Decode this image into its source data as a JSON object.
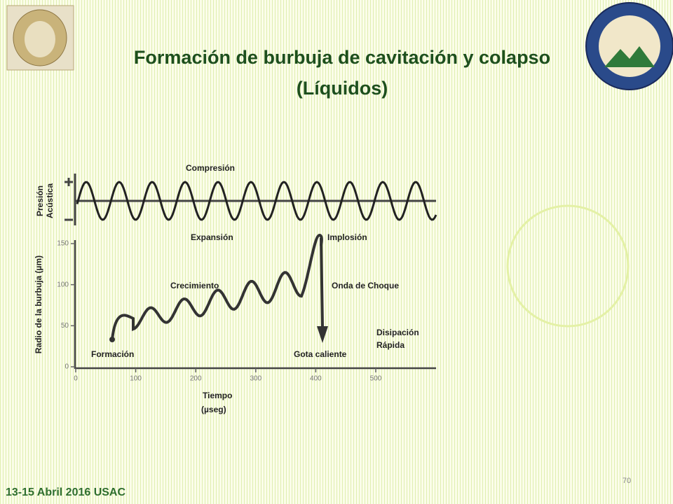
{
  "header": {
    "title": [
      "Formación de burbuja de cavitación y colapso",
      "(Líquidos)"
    ]
  },
  "figure": {
    "pressure_axis_label": [
      "Presión",
      "Acústica"
    ],
    "radius_axis_label": "Radio de la burbuja (µm)",
    "yticks": [
      0,
      50,
      100,
      150
    ],
    "xticks": [
      0,
      100,
      200,
      300,
      400,
      500
    ],
    "x_axis_label": [
      "Tiempo",
      "(µseg)"
    ],
    "annotations": {
      "compression": "Compresión",
      "expansion": "Expansión",
      "implosion": "Implosión",
      "growth": "Crecimiento",
      "shock_wave": "Onda de Choque",
      "dissipation": [
        "Disipación",
        "Rápida"
      ],
      "formation": "Formación",
      "hot_spot": "Gota caliente"
    }
  },
  "footer": {
    "date": "13-15 Abril 2016 USAC",
    "page": 70
  }
}
